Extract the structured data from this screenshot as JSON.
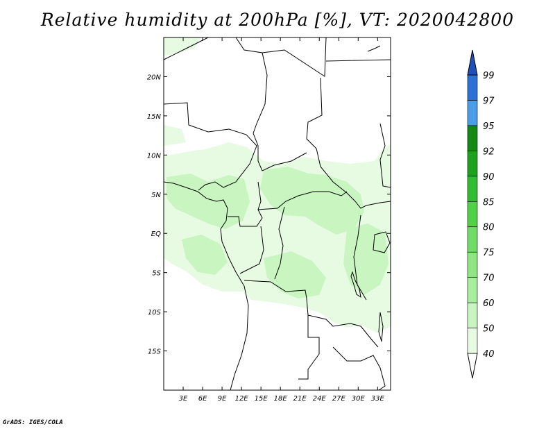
{
  "title": "Relative humidity at 200hPa [%], VT: 2020042800",
  "credit": "GrADS: IGES/COLA",
  "map": {
    "lon_range": [
      0,
      35
    ],
    "lat_range": [
      -20,
      25
    ],
    "lon_ticks": [
      {
        "value": 3,
        "label": "3E"
      },
      {
        "value": 6,
        "label": "6E"
      },
      {
        "value": 9,
        "label": "9E"
      },
      {
        "value": 12,
        "label": "12E"
      },
      {
        "value": 15,
        "label": "15E"
      },
      {
        "value": 18,
        "label": "18E"
      },
      {
        "value": 21,
        "label": "21E"
      },
      {
        "value": 24,
        "label": "24E"
      },
      {
        "value": 27,
        "label": "27E"
      },
      {
        "value": 30,
        "label": "30E"
      },
      {
        "value": 33,
        "label": "33E"
      }
    ],
    "lat_ticks": [
      {
        "value": 20,
        "label": "20N"
      },
      {
        "value": 15,
        "label": "15N"
      },
      {
        "value": 10,
        "label": "10N"
      },
      {
        "value": 5,
        "label": "5N"
      },
      {
        "value": 0,
        "label": "EQ"
      },
      {
        "value": -5,
        "label": "5S"
      },
      {
        "value": -10,
        "label": "10S"
      },
      {
        "value": -15,
        "label": "15S"
      }
    ]
  },
  "colorbar": {
    "levels": [
      "40",
      "50",
      "60",
      "70",
      "75",
      "80",
      "85",
      "90",
      "92",
      "95",
      "97",
      "99"
    ],
    "colors": [
      "#ffffff",
      "#e6fbe2",
      "#c8f5c0",
      "#a9ee9e",
      "#8fe682",
      "#70dd66",
      "#4fd148",
      "#31bc31",
      "#1ea21e",
      "#148a14",
      "#4a9de8",
      "#2d70d6",
      "#1f4fb8"
    ]
  },
  "colors": {
    "land_lines": "#000000",
    "humid_light": "#e6fbe2",
    "humid_mid": "#c8f5c0"
  }
}
